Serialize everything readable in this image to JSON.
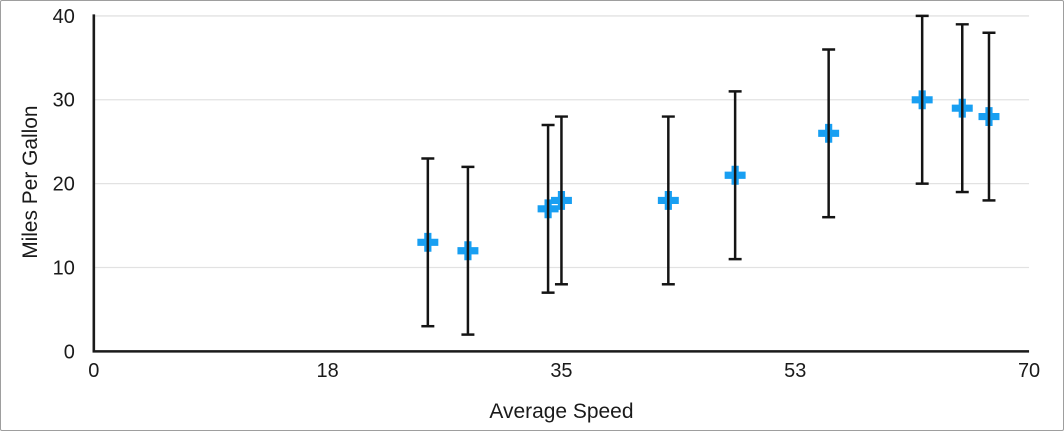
{
  "chart_data": {
    "type": "scatter",
    "title": "",
    "xlabel": "Average Speed",
    "ylabel": "Miles Per Gallon",
    "xlim": [
      0,
      70
    ],
    "ylim": [
      0,
      40
    ],
    "grid": "horizontal",
    "legend": "none",
    "x_ticks": [
      {
        "value": 0,
        "label": "0"
      },
      {
        "value": 17.5,
        "label": "18"
      },
      {
        "value": 35,
        "label": "35"
      },
      {
        "value": 52.5,
        "label": "53"
      },
      {
        "value": 70,
        "label": "70"
      }
    ],
    "y_ticks": [
      {
        "value": 0,
        "label": "0"
      },
      {
        "value": 10,
        "label": "10"
      },
      {
        "value": 20,
        "label": "20"
      },
      {
        "value": 30,
        "label": "30"
      },
      {
        "value": 40,
        "label": "40"
      }
    ],
    "series": [
      {
        "name": "Miles Per Gallon",
        "marker": "plus",
        "error_bars": {
          "direction": "both",
          "magnitude": 10
        },
        "points": [
          {
            "x": 25,
            "y": 13
          },
          {
            "x": 28,
            "y": 12
          },
          {
            "x": 34,
            "y": 17
          },
          {
            "x": 35,
            "y": 18
          },
          {
            "x": 43,
            "y": 18
          },
          {
            "x": 48,
            "y": 21
          },
          {
            "x": 55,
            "y": 26
          },
          {
            "x": 62,
            "y": 30
          },
          {
            "x": 65,
            "y": 29
          },
          {
            "x": 67,
            "y": 28
          }
        ]
      }
    ]
  },
  "colors": {
    "marker": "#189FF2",
    "axis": "#1a1a1a",
    "error_bar": "#141414",
    "grid": "#e2e2e2",
    "text": "#1a1a1a",
    "frame_border": "#9e9e9e",
    "background": "#ffffff"
  }
}
